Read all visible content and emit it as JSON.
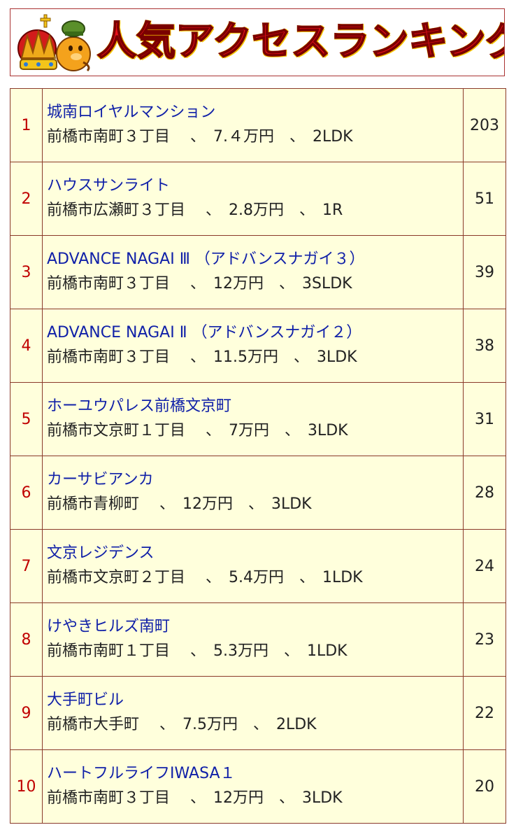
{
  "header": {
    "title": "人気アクセスランキング"
  },
  "colors": {
    "title_red": "#e8101a",
    "rank_red": "#c00000",
    "link_blue": "#1020a8",
    "cell_bg": "#ffffdc",
    "border": "#8a3a2a"
  },
  "ranking": [
    {
      "rank": "1",
      "name": "城南ロイヤルマンション",
      "detail": "前橋市南町３丁目　 、　7.４万円　、　2LDK",
      "count": "203"
    },
    {
      "rank": "2",
      "name": "ハウスサンライト",
      "detail": "前橋市広瀬町３丁目　 、　2.8万円　、　1R",
      "count": "51"
    },
    {
      "rank": "3",
      "name": "ADVANCE NAGAI Ⅲ （アドバンスナガイ３）",
      "detail": "前橋市南町３丁目　 、　12万円　、　3SLDK",
      "count": "39"
    },
    {
      "rank": "4",
      "name": "ADVANCE NAGAI Ⅱ （アドバンスナガイ２）",
      "detail": "前橋市南町３丁目　 、　11.5万円　、　3LDK",
      "count": "38"
    },
    {
      "rank": "5",
      "name": "ホーユウパレス前橋文京町",
      "detail": "前橋市文京町１丁目　 、　7万円　、　3LDK",
      "count": "31"
    },
    {
      "rank": "6",
      "name": "カーサビアンカ",
      "detail": "前橋市青柳町　 、　12万円　、　3LDK",
      "count": "28"
    },
    {
      "rank": "7",
      "name": "文京レジデンス",
      "detail": "前橋市文京町２丁目　 、　5.4万円　、　1LDK",
      "count": "24"
    },
    {
      "rank": "8",
      "name": "けやきヒルズ南町",
      "detail": "前橋市南町１丁目　 、　5.3万円　、　1LDK",
      "count": "23"
    },
    {
      "rank": "9",
      "name": "大手町ビル",
      "detail": "前橋市大手町　 、　7.5万円　、　2LDK",
      "count": "22"
    },
    {
      "rank": "10",
      "name": "ハートフルライフIWASA１",
      "detail": "前橋市南町３丁目　 、　12万円　、　3LDK",
      "count": "20"
    }
  ]
}
